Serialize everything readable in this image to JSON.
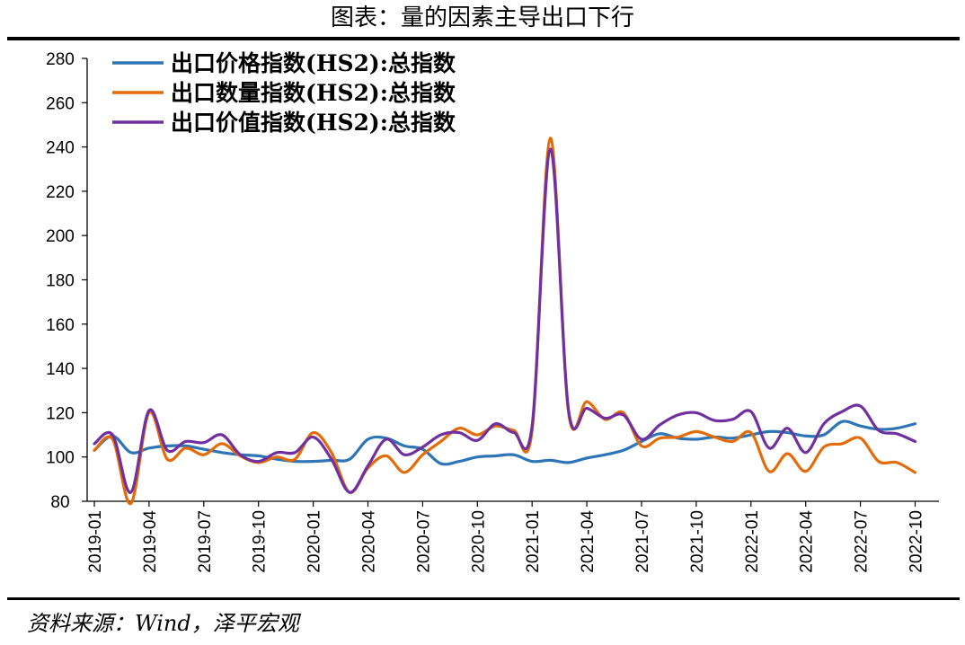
{
  "header": {
    "title": "图表：量的因素主导出口下行"
  },
  "footer": {
    "source": "资料来源：Wind，泽平宏观"
  },
  "chart_data": {
    "type": "line",
    "title": "图表：量的因素主导出口下行",
    "xlabel": "",
    "ylabel": "",
    "ylim": [
      80,
      280
    ],
    "yticks": [
      80,
      100,
      120,
      140,
      160,
      180,
      200,
      220,
      240,
      260,
      280
    ],
    "grid": false,
    "legend": "top-left",
    "x": [
      "2019-01",
      "2019-02",
      "2019-03",
      "2019-04",
      "2019-05",
      "2019-06",
      "2019-07",
      "2019-08",
      "2019-09",
      "2019-10",
      "2019-11",
      "2019-12",
      "2020-01",
      "2020-02",
      "2020-03",
      "2020-04",
      "2020-05",
      "2020-06",
      "2020-07",
      "2020-08",
      "2020-09",
      "2020-10",
      "2020-11",
      "2020-12",
      "2021-01",
      "2021-02",
      "2021-03",
      "2021-04",
      "2021-05",
      "2021-06",
      "2021-07",
      "2021-08",
      "2021-09",
      "2021-10",
      "2021-11",
      "2021-12",
      "2022-01",
      "2022-02",
      "2022-03",
      "2022-04",
      "2022-05",
      "2022-06",
      "2022-07",
      "2022-08",
      "2022-09",
      "2022-10"
    ],
    "xticks": [
      "2019-01",
      "2019-04",
      "2019-07",
      "2019-10",
      "2020-01",
      "2020-04",
      "2020-07",
      "2020-10",
      "2021-01",
      "2021-04",
      "2021-07",
      "2021-10",
      "2022-01",
      "2022-04",
      "2022-07",
      "2022-10"
    ],
    "series": [
      {
        "name": "出口价格指数(HS2):总指数",
        "color": "#2e75b6",
        "values": [
          103,
          109.5,
          102,
          104,
          105,
          105,
          103.5,
          102,
          101,
          100.5,
          99,
          98,
          98,
          98.5,
          99,
          108,
          108.5,
          105,
          103.5,
          97,
          98,
          100,
          100.5,
          101,
          98,
          98.5,
          97.5,
          99.5,
          101,
          103,
          107,
          110.5,
          108.5,
          108,
          109,
          108.5,
          110,
          111.5,
          111,
          109.5,
          110,
          116,
          114,
          112.5,
          113,
          115
        ]
      },
      {
        "name": "出口数量指数(HS2):总指数",
        "color": "#e36c09",
        "values": [
          103,
          108,
          79,
          120,
          99,
          104,
          101,
          106,
          100.5,
          97.5,
          100,
          99,
          111,
          102,
          84,
          95,
          100.5,
          93,
          101,
          107,
          113,
          110,
          114,
          112,
          112,
          244,
          120,
          125,
          117,
          120,
          105,
          108.5,
          109,
          111.5,
          109,
          107,
          111,
          93.5,
          101.5,
          93.5,
          104.5,
          106,
          108.5,
          98,
          97.5,
          93
        ]
      },
      {
        "name": "出口价值指数(HS2):总指数",
        "color": "#7030a0",
        "values": [
          106,
          110,
          84,
          121,
          103,
          107,
          106.5,
          110,
          101,
          98,
          102,
          102,
          109,
          99,
          84,
          96,
          108,
          101,
          104.5,
          110,
          111,
          107.5,
          115,
          111,
          114,
          239,
          121,
          122,
          117.5,
          119,
          108,
          114.5,
          119,
          120,
          116.5,
          117,
          120.5,
          104,
          113,
          102,
          115,
          120.5,
          123,
          112,
          110.5,
          107
        ]
      }
    ]
  }
}
